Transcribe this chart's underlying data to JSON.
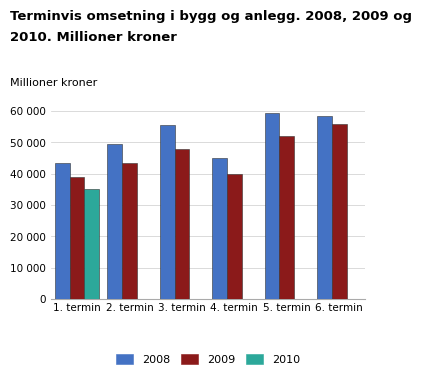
{
  "title_line1": "Terminvis omsetning i bygg og anlegg. 2008, 2009 og",
  "title_line2": "2010. Millioner kroner",
  "ylabel": "Millioner kroner",
  "categories": [
    "1. termin",
    "2. termin",
    "3. termin",
    "4. termin",
    "5. termin",
    "6. termin"
  ],
  "series": {
    "2008": [
      43500,
      49500,
      55500,
      45000,
      59500,
      58500
    ],
    "2009": [
      39000,
      43500,
      48000,
      40000,
      52000,
      56000
    ],
    "2010": [
      35000,
      null,
      null,
      null,
      null,
      null
    ]
  },
  "colors": {
    "2008": "#4472C4",
    "2009": "#8B1A1A",
    "2010": "#2CA89A"
  },
  "ylim": [
    0,
    65000
  ],
  "yticks": [
    0,
    10000,
    20000,
    30000,
    40000,
    50000,
    60000
  ],
  "ytick_labels": [
    "0",
    "10 000",
    "20 000",
    "30 000",
    "40 000",
    "50 000",
    "60 000"
  ],
  "bar_width": 0.28,
  "background_color": "#ffffff",
  "title_fontsize": 9.5,
  "ylabel_fontsize": 8,
  "tick_fontsize": 7.5,
  "legend_fontsize": 8
}
